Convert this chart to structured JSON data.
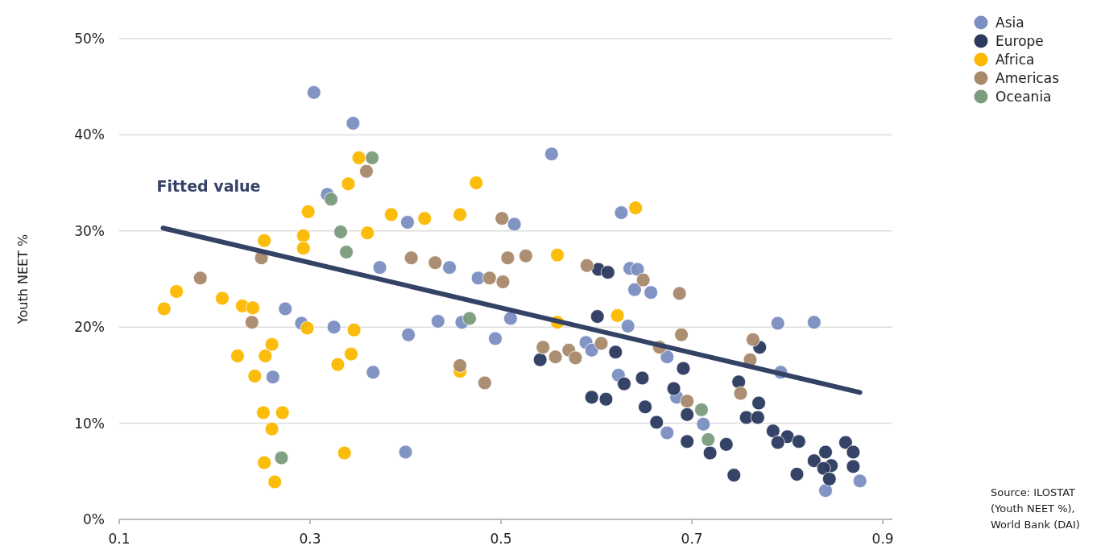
{
  "chart_data": {
    "type": "scatter",
    "ylabel": "Youth NEET %",
    "xlim": [
      0.1,
      0.91
    ],
    "ylim": [
      0,
      50
    ],
    "xticks": [
      0.1,
      0.3,
      0.5,
      0.7,
      0.9
    ],
    "yticks": [
      {
        "value": 0,
        "label": "0%"
      },
      {
        "value": 10,
        "label": "10%"
      },
      {
        "value": 20,
        "label": "20%"
      },
      {
        "value": 30,
        "label": "30%"
      },
      {
        "value": 40,
        "label": "40%"
      },
      {
        "value": 50,
        "label": "50%"
      }
    ],
    "grid": "y",
    "legend": "top right",
    "annotations": [
      "Source: ILOSTAT (Youth NEET %), World Bank (DAI)"
    ],
    "series": [
      {
        "name": "Asia",
        "marker": "circle",
        "color": "#7b8fc0",
        "x": [
          0.304,
          0.345,
          0.318,
          0.402,
          0.373,
          0.274,
          0.291,
          0.325,
          0.403,
          0.366,
          0.261,
          0.4,
          0.553,
          0.514,
          0.626,
          0.446,
          0.476,
          0.635,
          0.643,
          0.64,
          0.657,
          0.633,
          0.434,
          0.459,
          0.51,
          0.494,
          0.589,
          0.595,
          0.674,
          0.623,
          0.793,
          0.684,
          0.712,
          0.674,
          0.84,
          0.876,
          0.79,
          0.828
        ],
        "values": [
          44.4,
          41.2,
          33.8,
          30.9,
          26.2,
          21.9,
          20.4,
          20.0,
          19.2,
          15.3,
          14.8,
          7.0,
          38.0,
          30.7,
          31.9,
          26.2,
          25.1,
          26.1,
          26.0,
          23.9,
          23.6,
          20.1,
          20.6,
          20.5,
          20.9,
          18.8,
          18.4,
          17.6,
          16.9,
          15.0,
          15.3,
          12.7,
          9.9,
          9.0,
          3.0,
          4.0,
          20.4,
          20.5
        ]
      },
      {
        "name": "Europe",
        "marker": "circle",
        "color": "#2b3a5e",
        "x": [
          0.602,
          0.612,
          0.601,
          0.541,
          0.62,
          0.691,
          0.648,
          0.629,
          0.771,
          0.749,
          0.77,
          0.757,
          0.769,
          0.595,
          0.61,
          0.681,
          0.651,
          0.695,
          0.663,
          0.695,
          0.719,
          0.736,
          0.744,
          0.785,
          0.8,
          0.79,
          0.812,
          0.81,
          0.828,
          0.84,
          0.846,
          0.838,
          0.844,
          0.861,
          0.869,
          0.869
        ],
        "values": [
          26.0,
          25.7,
          21.1,
          16.6,
          17.4,
          15.7,
          14.7,
          14.1,
          17.9,
          14.3,
          12.1,
          10.6,
          10.6,
          12.7,
          12.5,
          13.6,
          11.7,
          10.9,
          10.1,
          8.1,
          6.9,
          7.8,
          4.6,
          9.2,
          8.6,
          8.0,
          8.1,
          4.7,
          6.1,
          7.0,
          5.6,
          5.3,
          4.2,
          8.0,
          7.0,
          5.5
        ]
      },
      {
        "name": "Africa",
        "marker": "circle",
        "color": "#fbb900",
        "x": [
          0.351,
          0.34,
          0.298,
          0.385,
          0.36,
          0.293,
          0.293,
          0.252,
          0.16,
          0.147,
          0.208,
          0.229,
          0.24,
          0.297,
          0.346,
          0.26,
          0.224,
          0.253,
          0.343,
          0.329,
          0.242,
          0.251,
          0.271,
          0.26,
          0.336,
          0.252,
          0.263,
          0.474,
          0.42,
          0.457,
          0.641,
          0.559,
          0.622,
          0.559,
          0.457
        ],
        "values": [
          37.6,
          34.9,
          32.0,
          31.7,
          29.8,
          29.5,
          28.2,
          29.0,
          23.7,
          21.9,
          23.0,
          22.2,
          22.0,
          19.9,
          19.7,
          18.2,
          17.0,
          17.0,
          17.2,
          16.1,
          14.9,
          11.1,
          11.1,
          9.4,
          6.9,
          5.9,
          3.9,
          35.0,
          31.3,
          31.7,
          32.4,
          27.5,
          21.2,
          20.5,
          15.4
        ]
      },
      {
        "name": "Americas",
        "marker": "circle",
        "color": "#a88a6c",
        "x": [
          0.359,
          0.249,
          0.406,
          0.185,
          0.239,
          0.431,
          0.501,
          0.507,
          0.526,
          0.488,
          0.502,
          0.59,
          0.649,
          0.687,
          0.689,
          0.544,
          0.557,
          0.571,
          0.578,
          0.605,
          0.666,
          0.457,
          0.483,
          0.764,
          0.761,
          0.751,
          0.695
        ],
        "values": [
          36.2,
          27.2,
          27.2,
          25.1,
          20.5,
          26.7,
          31.3,
          27.2,
          27.4,
          25.1,
          24.7,
          26.4,
          24.9,
          23.5,
          19.2,
          17.9,
          16.9,
          17.6,
          16.8,
          18.3,
          17.9,
          16.0,
          14.2,
          18.7,
          16.6,
          13.1,
          12.3
        ]
      },
      {
        "name": "Oceania",
        "marker": "circle",
        "color": "#7c9c7c",
        "x": [
          0.365,
          0.322,
          0.332,
          0.338,
          0.27,
          0.467,
          0.71,
          0.717
        ],
        "values": [
          37.6,
          33.3,
          29.9,
          27.8,
          6.4,
          20.9,
          11.4,
          8.3
        ]
      },
      {
        "name": "Fitted value",
        "type": "line",
        "marker": "none",
        "color": "#344266",
        "x": [
          0.146,
          0.876
        ],
        "values": [
          30.3,
          13.2
        ]
      }
    ]
  }
}
